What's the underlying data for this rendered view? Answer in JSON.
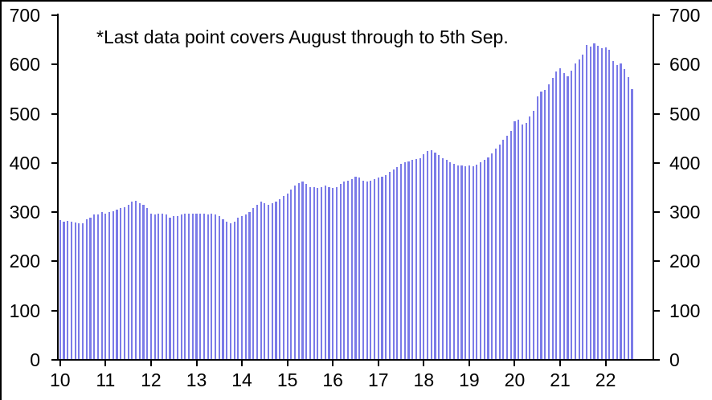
{
  "annotation": "*Last data point covers August through to 5th Sep.",
  "colors": {
    "bar": "#7b7be8",
    "axis": "#000000",
    "text": "#000000",
    "background": "#ffffff"
  },
  "chart_data": {
    "type": "bar",
    "title": "",
    "annotation": "*Last data point covers August through to 5th Sep.",
    "frequency": "monthly",
    "x_start": "2010-01",
    "x_end": "2022-08",
    "note": "Last bar covers August through to 5th Sep.",
    "values": [
      282,
      279,
      280,
      279,
      278,
      275,
      276,
      284,
      287,
      293,
      294,
      298,
      296,
      298,
      301,
      303,
      306,
      309,
      314,
      320,
      322,
      317,
      314,
      306,
      295,
      293,
      296,
      295,
      294,
      287,
      290,
      291,
      293,
      295,
      296,
      295,
      296,
      295,
      296,
      293,
      295,
      293,
      290,
      284,
      279,
      276,
      279,
      287,
      291,
      294,
      298,
      306,
      314,
      320,
      317,
      314,
      317,
      320,
      325,
      331,
      336,
      344,
      352,
      358,
      361,
      355,
      350,
      350,
      347,
      350,
      352,
      350,
      347,
      350,
      355,
      361,
      363,
      366,
      371,
      369,
      363,
      361,
      363,
      366,
      369,
      371,
      374,
      380,
      385,
      390,
      396,
      399,
      401,
      404,
      407,
      408,
      416,
      422,
      424,
      420,
      415,
      408,
      404,
      400,
      397,
      394,
      393,
      392,
      393,
      392,
      395,
      399,
      404,
      410,
      418,
      427,
      436,
      445,
      453,
      464,
      483,
      487,
      477,
      479,
      492,
      505,
      533,
      543,
      546,
      558,
      571,
      584,
      591,
      581,
      575,
      586,
      600,
      608,
      619,
      638,
      635,
      641,
      636,
      631,
      633,
      629,
      605,
      597,
      601,
      589,
      573,
      548
    ],
    "ylim": [
      0,
      700
    ],
    "yticks": [
      "0",
      "100",
      "200",
      "300",
      "400",
      "500",
      "600",
      "700"
    ],
    "y_axis_sides": [
      "left",
      "right"
    ],
    "xticks": [
      "10",
      "11",
      "12",
      "13",
      "14",
      "15",
      "16",
      "17",
      "18",
      "19",
      "20",
      "21",
      "22"
    ],
    "grid": false,
    "legend": null
  }
}
